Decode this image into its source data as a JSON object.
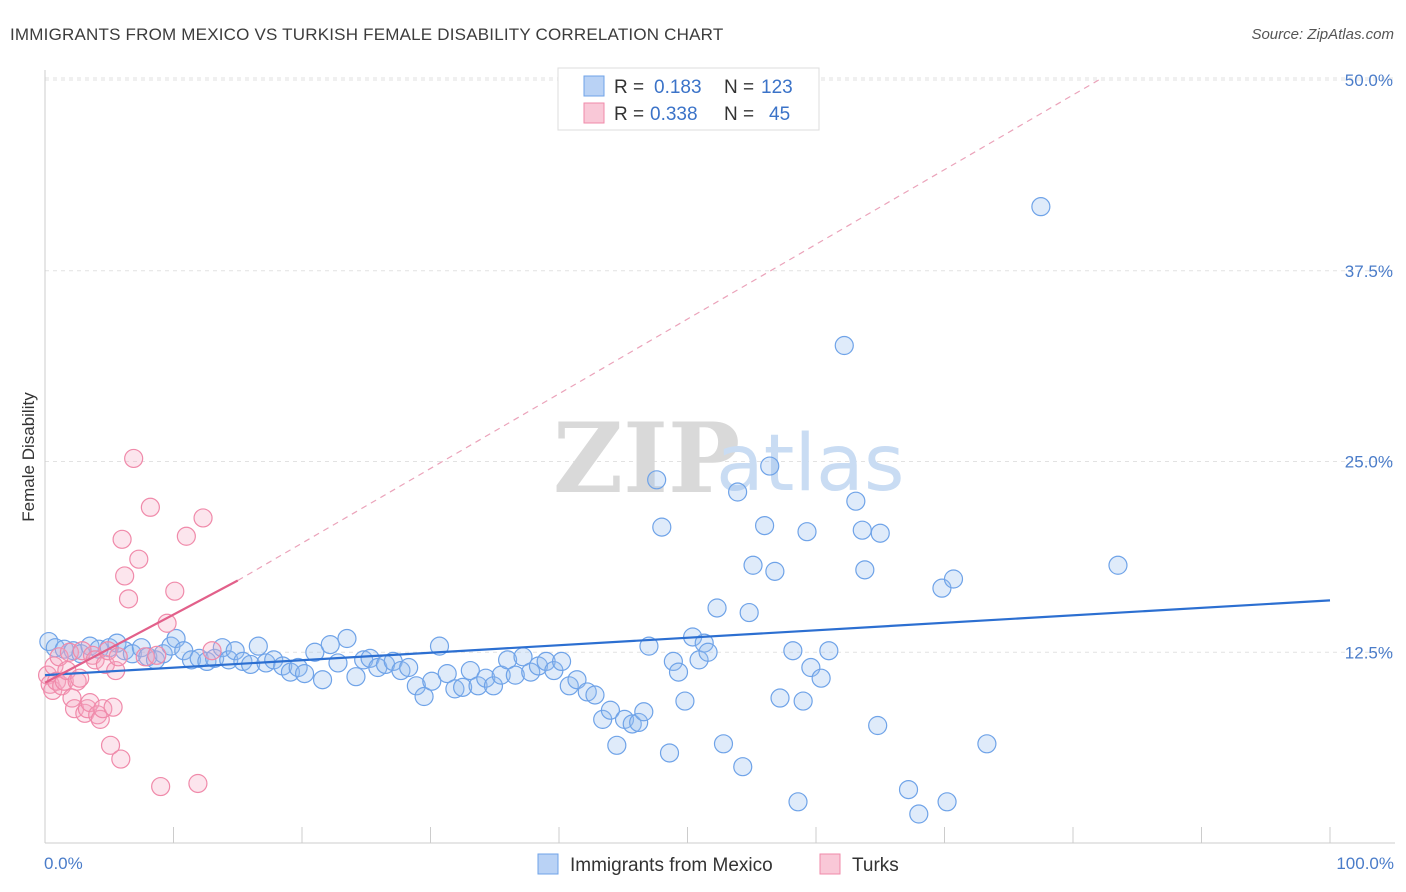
{
  "chart_data": {
    "type": "scatter",
    "title": "IMMIGRANTS FROM MEXICO VS TURKISH FEMALE DISABILITY CORRELATION CHART",
    "source": "Source: ZipAtlas.com",
    "xlabel": "",
    "ylabel": "Female Disability",
    "xlim": [
      0,
      100
    ],
    "ylim": [
      0,
      50
    ],
    "x_tick_labels": [
      "0.0%",
      "100.0%"
    ],
    "y_ticks": [
      {
        "value": 12.5,
        "label": "12.5%"
      },
      {
        "value": 25.0,
        "label": "25.0%"
      },
      {
        "value": 37.5,
        "label": "37.5%"
      },
      {
        "value": 50.0,
        "label": "50.0%"
      }
    ],
    "watermark": {
      "zip": "ZIP",
      "atlas": "atlas"
    },
    "legend": [
      {
        "r_label": "R =",
        "r_value": "0.183",
        "n_label": "N =",
        "n_value": "123"
      },
      {
        "r_label": "R =",
        "r_value": "0.338",
        "n_label": "N =",
        "n_value": "45"
      }
    ],
    "series": [
      {
        "name": "Immigrants from Mexico",
        "color": "#6fa3e8",
        "fill": "rgba(150,190,240,0.30)",
        "trend_color": "#2c6fd1",
        "trend": {
          "x0": 0,
          "y0": 11.0,
          "x1": 100,
          "y1": 15.9,
          "dashed": false
        },
        "points": [
          [
            0.3,
            13.2
          ],
          [
            0.8,
            12.8
          ],
          [
            1.5,
            12.7
          ],
          [
            2.2,
            12.6
          ],
          [
            2.8,
            12.4
          ],
          [
            3.5,
            12.9
          ],
          [
            4.2,
            12.7
          ],
          [
            5.0,
            12.8
          ],
          [
            5.6,
            13.1
          ],
          [
            6.2,
            12.6
          ],
          [
            6.8,
            12.4
          ],
          [
            7.5,
            12.8
          ],
          [
            8.0,
            12.2
          ],
          [
            8.6,
            12.0
          ],
          [
            9.2,
            12.4
          ],
          [
            9.8,
            12.9
          ],
          [
            10.2,
            13.4
          ],
          [
            10.8,
            12.6
          ],
          [
            11.4,
            12.0
          ],
          [
            12.0,
            12.1
          ],
          [
            12.6,
            11.9
          ],
          [
            13.2,
            12.1
          ],
          [
            13.8,
            12.8
          ],
          [
            14.3,
            12.0
          ],
          [
            14.8,
            12.6
          ],
          [
            15.4,
            11.9
          ],
          [
            16.0,
            11.7
          ],
          [
            16.6,
            12.9
          ],
          [
            17.2,
            11.8
          ],
          [
            17.8,
            12.0
          ],
          [
            18.5,
            11.6
          ],
          [
            19.1,
            11.2
          ],
          [
            19.7,
            11.5
          ],
          [
            20.2,
            11.1
          ],
          [
            21.0,
            12.5
          ],
          [
            21.6,
            10.7
          ],
          [
            22.2,
            13.0
          ],
          [
            22.8,
            11.8
          ],
          [
            23.5,
            13.4
          ],
          [
            24.2,
            10.9
          ],
          [
            24.8,
            12.0
          ],
          [
            25.3,
            12.1
          ],
          [
            25.9,
            11.5
          ],
          [
            26.5,
            11.7
          ],
          [
            27.1,
            11.9
          ],
          [
            27.7,
            11.3
          ],
          [
            28.3,
            11.5
          ],
          [
            28.9,
            10.3
          ],
          [
            29.5,
            9.6
          ],
          [
            30.1,
            10.6
          ],
          [
            30.7,
            12.9
          ],
          [
            31.3,
            11.1
          ],
          [
            31.9,
            10.1
          ],
          [
            32.5,
            10.2
          ],
          [
            33.1,
            11.3
          ],
          [
            33.7,
            10.3
          ],
          [
            34.3,
            10.8
          ],
          [
            34.9,
            10.3
          ],
          [
            35.5,
            11.0
          ],
          [
            36.0,
            12.0
          ],
          [
            36.6,
            11.0
          ],
          [
            37.2,
            12.2
          ],
          [
            37.8,
            11.2
          ],
          [
            38.4,
            11.6
          ],
          [
            39.0,
            11.9
          ],
          [
            39.6,
            11.3
          ],
          [
            40.2,
            11.9
          ],
          [
            40.8,
            10.3
          ],
          [
            41.4,
            10.7
          ],
          [
            42.2,
            9.9
          ],
          [
            42.8,
            9.7
          ],
          [
            43.4,
            8.1
          ],
          [
            44.0,
            8.7
          ],
          [
            44.5,
            6.4
          ],
          [
            45.1,
            8.1
          ],
          [
            45.7,
            7.8
          ],
          [
            46.2,
            7.9
          ],
          [
            46.6,
            8.6
          ],
          [
            47.0,
            12.9
          ],
          [
            47.6,
            23.8
          ],
          [
            48.0,
            20.7
          ],
          [
            48.6,
            5.9
          ],
          [
            48.9,
            11.9
          ],
          [
            49.3,
            11.2
          ],
          [
            49.8,
            9.3
          ],
          [
            50.4,
            13.5
          ],
          [
            50.9,
            12.0
          ],
          [
            51.3,
            13.1
          ],
          [
            51.6,
            12.5
          ],
          [
            52.3,
            15.4
          ],
          [
            52.8,
            6.5
          ],
          [
            53.9,
            23.0
          ],
          [
            54.3,
            5.0
          ],
          [
            54.8,
            15.1
          ],
          [
            55.1,
            18.2
          ],
          [
            56.0,
            20.8
          ],
          [
            56.4,
            24.7
          ],
          [
            56.8,
            17.8
          ],
          [
            57.2,
            9.5
          ],
          [
            58.2,
            12.6
          ],
          [
            58.6,
            2.7
          ],
          [
            59.0,
            9.3
          ],
          [
            59.3,
            20.4
          ],
          [
            59.6,
            11.5
          ],
          [
            60.4,
            10.8
          ],
          [
            61.0,
            12.6
          ],
          [
            62.2,
            32.6
          ],
          [
            63.1,
            22.4
          ],
          [
            63.6,
            20.5
          ],
          [
            63.8,
            17.9
          ],
          [
            64.8,
            7.7
          ],
          [
            65.0,
            20.3
          ],
          [
            67.2,
            3.5
          ],
          [
            68.0,
            1.9
          ],
          [
            69.8,
            16.7
          ],
          [
            70.2,
            2.7
          ],
          [
            70.7,
            17.3
          ],
          [
            73.3,
            6.5
          ],
          [
            77.5,
            41.7
          ],
          [
            83.5,
            18.2
          ]
        ]
      },
      {
        "name": "Turks",
        "color": "#f08aaa",
        "fill": "rgba(245,170,195,0.30)",
        "trend_color": "#e2608a",
        "trend": {
          "x0": 0,
          "y0": 10.5,
          "x1": 15.0,
          "y1": 17.2,
          "dashed": false
        },
        "trend_extension": {
          "x0": 15.0,
          "y0": 17.2,
          "x1": 82.0,
          "y1": 50.0,
          "dashed": true
        },
        "points": [
          [
            0.2,
            11.0
          ],
          [
            0.4,
            10.4
          ],
          [
            0.6,
            10.0
          ],
          [
            0.7,
            11.6
          ],
          [
            0.9,
            10.6
          ],
          [
            1.1,
            12.2
          ],
          [
            1.3,
            10.3
          ],
          [
            1.5,
            10.6
          ],
          [
            1.7,
            11.3
          ],
          [
            1.9,
            12.5
          ],
          [
            2.1,
            9.5
          ],
          [
            2.3,
            8.8
          ],
          [
            2.5,
            10.6
          ],
          [
            2.7,
            10.8
          ],
          [
            2.9,
            12.6
          ],
          [
            3.1,
            8.5
          ],
          [
            3.3,
            8.8
          ],
          [
            3.5,
            9.2
          ],
          [
            3.7,
            12.3
          ],
          [
            3.9,
            12.0
          ],
          [
            4.1,
            8.4
          ],
          [
            4.3,
            8.1
          ],
          [
            4.5,
            8.8
          ],
          [
            4.7,
            11.7
          ],
          [
            4.9,
            12.6
          ],
          [
            5.1,
            6.4
          ],
          [
            5.3,
            8.9
          ],
          [
            5.5,
            11.3
          ],
          [
            5.7,
            12.2
          ],
          [
            5.9,
            5.5
          ],
          [
            6.0,
            19.9
          ],
          [
            6.2,
            17.5
          ],
          [
            6.5,
            16.0
          ],
          [
            6.9,
            25.2
          ],
          [
            7.3,
            18.6
          ],
          [
            7.8,
            12.2
          ],
          [
            8.2,
            22.0
          ],
          [
            8.7,
            12.3
          ],
          [
            9.0,
            3.7
          ],
          [
            9.5,
            14.4
          ],
          [
            10.1,
            16.5
          ],
          [
            11.0,
            20.1
          ],
          [
            11.9,
            3.9
          ],
          [
            12.3,
            21.3
          ],
          [
            13.0,
            12.6
          ]
        ]
      }
    ]
  }
}
